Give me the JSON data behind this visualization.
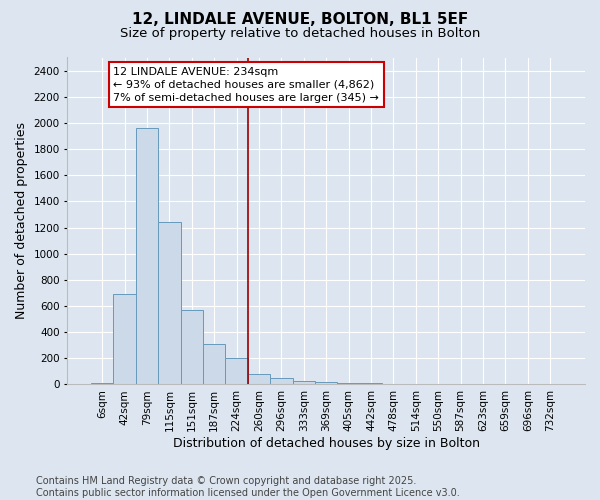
{
  "title_line1": "12, LINDALE AVENUE, BOLTON, BL1 5EF",
  "title_line2": "Size of property relative to detached houses in Bolton",
  "xlabel": "Distribution of detached houses by size in Bolton",
  "ylabel": "Number of detached properties",
  "categories": [
    "6sqm",
    "42sqm",
    "79sqm",
    "115sqm",
    "151sqm",
    "187sqm",
    "224sqm",
    "260sqm",
    "296sqm",
    "333sqm",
    "369sqm",
    "405sqm",
    "442sqm",
    "478sqm",
    "514sqm",
    "550sqm",
    "587sqm",
    "623sqm",
    "659sqm",
    "696sqm",
    "732sqm"
  ],
  "values": [
    8,
    690,
    1960,
    1240,
    570,
    310,
    200,
    83,
    48,
    28,
    20,
    13,
    8,
    5,
    3,
    2,
    1,
    1,
    0,
    0,
    0
  ],
  "bar_color": "#ccd9e8",
  "bar_edge_color": "#6699bb",
  "vline_color": "#990000",
  "annotation_text": "12 LINDALE AVENUE: 234sqm\n← 93% of detached houses are smaller (4,862)\n7% of semi-detached houses are larger (345) →",
  "annotation_box_facecolor": "#ffffff",
  "annotation_box_edgecolor": "#cc0000",
  "ylim": [
    0,
    2500
  ],
  "yticks": [
    0,
    200,
    400,
    600,
    800,
    1000,
    1200,
    1400,
    1600,
    1800,
    2000,
    2200,
    2400
  ],
  "background_color": "#dde6f0",
  "plot_background_color": "#dde6f0",
  "grid_color": "#ffffff",
  "footer_text": "Contains HM Land Registry data © Crown copyright and database right 2025.\nContains public sector information licensed under the Open Government Licence v3.0.",
  "title_fontsize": 11,
  "subtitle_fontsize": 9.5,
  "axis_label_fontsize": 9,
  "tick_fontsize": 7.5,
  "annotation_fontsize": 8,
  "footer_fontsize": 7
}
